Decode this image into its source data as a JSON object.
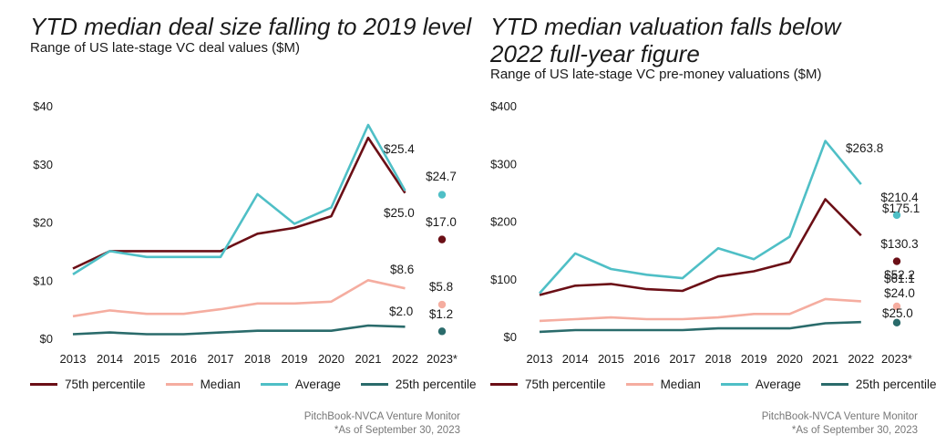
{
  "colors": {
    "p75": "#6b0f16",
    "median": "#f5ada0",
    "average": "#4fbfc6",
    "p25": "#2a6b6b"
  },
  "charts": [
    {
      "title": "YTD median deal size falling to 2019 level",
      "subtitle": "Range of US late-stage VC deal values ($M)",
      "source": "PitchBook-NVCA Venture Monitor",
      "note": "*As of September 30, 2023",
      "legend": [
        "75th percentile",
        "Median",
        "Average",
        "25th percentile"
      ]
    },
    {
      "title": "YTD median valuation falls below 2022 full-year figure",
      "subtitle": "Range of US late-stage VC pre-money valuations ($M)",
      "source": "PitchBook-NVCA Venture Monitor",
      "note": "*As of September 30, 2023",
      "legend": [
        "75th percentile",
        "Median",
        "Average",
        "25th percentile"
      ]
    }
  ],
  "chart_data": [
    {
      "type": "line",
      "title": "YTD median deal size falling to 2019 level",
      "subtitle": "Range of US late-stage VC deal values ($M)",
      "x": [
        "2013",
        "2014",
        "2015",
        "2016",
        "2017",
        "2018",
        "2019",
        "2020",
        "2021",
        "2022",
        "2023*"
      ],
      "ylim": [
        0,
        40
      ],
      "yticks": [
        "$0",
        "$10",
        "$20",
        "$30",
        "$40"
      ],
      "yticks_values": [
        0,
        10,
        20,
        30,
        40
      ],
      "legend_position": "bottom",
      "series": [
        {
          "name": "75th percentile",
          "color_key": "p75",
          "values": [
            12.0,
            15.0,
            15.0,
            15.0,
            15.0,
            18.0,
            19.0,
            21.0,
            34.5,
            25.0,
            null
          ],
          "point_2023": 17.0
        },
        {
          "name": "Median",
          "color_key": "median",
          "values": [
            3.8,
            4.8,
            4.2,
            4.2,
            5.0,
            6.0,
            6.0,
            6.3,
            10.0,
            8.6,
            null
          ],
          "point_2023": 5.8
        },
        {
          "name": "Average",
          "color_key": "average",
          "values": [
            11.0,
            15.0,
            14.0,
            14.0,
            14.0,
            24.8,
            19.7,
            22.5,
            36.7,
            25.4,
            null
          ],
          "point_2023": 24.7
        },
        {
          "name": "25th percentile",
          "color_key": "p25",
          "values": [
            0.7,
            1.0,
            0.7,
            0.7,
            1.0,
            1.3,
            1.3,
            1.3,
            2.2,
            2.0,
            null
          ],
          "point_2023": 1.2
        }
      ],
      "annotations": [
        {
          "text": "$25.4",
          "series": "Average",
          "x": "2022"
        },
        {
          "text": "$25.0",
          "series": "75th percentile",
          "x": "2022"
        },
        {
          "text": "$8.6",
          "series": "Median",
          "x": "2022"
        },
        {
          "text": "$2.0",
          "series": "25th percentile",
          "x": "2022"
        },
        {
          "text": "$24.7",
          "series": "Average",
          "x": "2023*"
        },
        {
          "text": "$17.0",
          "series": "75th percentile",
          "x": "2023*"
        },
        {
          "text": "$5.8",
          "series": "Median",
          "x": "2023*"
        },
        {
          "text": "$1.2",
          "series": "25th percentile",
          "x": "2023*"
        }
      ]
    },
    {
      "type": "line",
      "title": "YTD median valuation falls below 2022 full-year figure",
      "subtitle": "Range of US late-stage VC pre-money valuations ($M)",
      "x": [
        "2013",
        "2014",
        "2015",
        "2016",
        "2017",
        "2018",
        "2019",
        "2020",
        "2021",
        "2022",
        "2023*"
      ],
      "ylim": [
        0,
        400
      ],
      "yticks": [
        "$0",
        "$100",
        "$200",
        "$300",
        "$400"
      ],
      "yticks_values": [
        0,
        100,
        200,
        300,
        400
      ],
      "legend_position": "bottom",
      "series": [
        {
          "name": "75th percentile",
          "color_key": "p75",
          "values": [
            72,
            88,
            91,
            82,
            79,
            104,
            113,
            129,
            238,
            175.1,
            null
          ],
          "point_2023": 130.3
        },
        {
          "name": "Median",
          "color_key": "median",
          "values": [
            27,
            30,
            33,
            30,
            30,
            33,
            39,
            39,
            65,
            61.1,
            null
          ],
          "point_2023": 52.2
        },
        {
          "name": "Average",
          "color_key": "average",
          "values": [
            75,
            144,
            117,
            107,
            101,
            153,
            134,
            173,
            339,
            263.8,
            null
          ],
          "point_2023": 210.4
        },
        {
          "name": "25th percentile",
          "color_key": "p25",
          "values": [
            8,
            11,
            11,
            11,
            11,
            14,
            14,
            14,
            23,
            25.0,
            null
          ],
          "point_2023": 24.0
        }
      ],
      "annotations": [
        {
          "text": "$263.8",
          "series": "Average",
          "x": "2022"
        },
        {
          "text": "$175.1",
          "series": "75th percentile",
          "x": "2022"
        },
        {
          "text": "$61.1",
          "series": "Median",
          "x": "2022"
        },
        {
          "text": "$25.0",
          "series": "25th percentile",
          "x": "2022"
        },
        {
          "text": "$210.4",
          "series": "Average",
          "x": "2023*"
        },
        {
          "text": "$130.3",
          "series": "75th percentile",
          "x": "2023*"
        },
        {
          "text": "$52.2",
          "series": "Median",
          "x": "2023*"
        },
        {
          "text": "$24.0",
          "series": "25th percentile",
          "x": "2023*"
        }
      ]
    }
  ]
}
